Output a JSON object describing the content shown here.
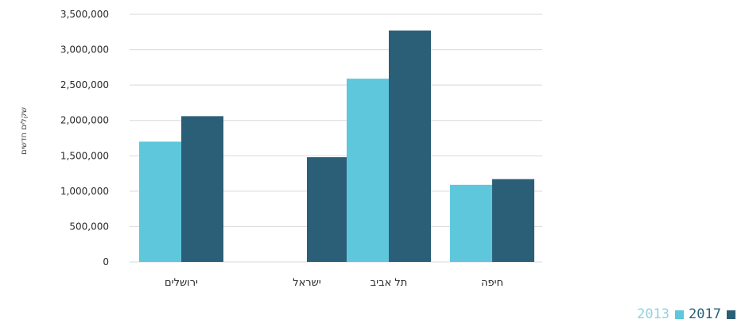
{
  "chart_data": {
    "type": "bar",
    "ylabel": "שקלים חדשים",
    "categories": [
      "ירושלים",
      "ישראל",
      "תל אביב",
      "חיפה"
    ],
    "series": [
      {
        "name": "2013",
        "color": "#5ec7dc",
        "values": [
          1700000,
          null,
          2590000,
          1090000
        ]
      },
      {
        "name": "2017",
        "color": "#2b5f78",
        "values": [
          2060000,
          1480000,
          3270000,
          1170000
        ]
      }
    ],
    "yticks": [
      0,
      500000,
      1000000,
      1500000,
      2000000,
      2500000,
      3000000,
      3500000
    ],
    "ytick_labels": [
      "0",
      "500,000",
      "1,000,000",
      "1,500,000",
      "2,000,000",
      "2,500,000",
      "3,000,000",
      "3,500,000"
    ],
    "ylim": [
      0,
      3500000
    ],
    "grid": true,
    "legend_position": "bottom-right"
  }
}
